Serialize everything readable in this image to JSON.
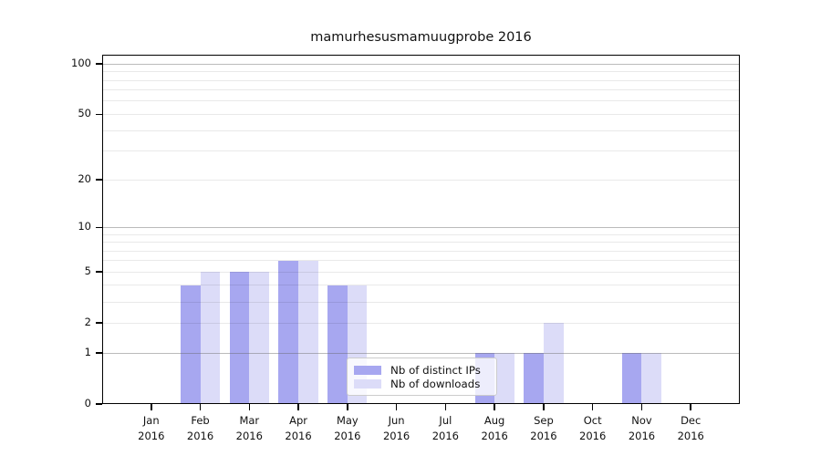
{
  "title": "mamurhesusmamuugprobe 2016",
  "chart_data": {
    "type": "bar",
    "title": "mamurhesusmamuugprobe 2016",
    "categories": [
      "Jan 2016",
      "Feb 2016",
      "Mar 2016",
      "Apr 2016",
      "May 2016",
      "Jun 2016",
      "Jul 2016",
      "Aug 2016",
      "Sep 2016",
      "Oct 2016",
      "Nov 2016",
      "Dec 2016"
    ],
    "series": [
      {
        "name": "Nb of distinct IPs",
        "color": "#a7a7f0",
        "values": [
          0,
          4,
          5,
          6,
          4,
          0,
          0,
          1,
          1,
          0,
          1,
          0
        ]
      },
      {
        "name": "Nb of downloads",
        "color": "#dcdcf8",
        "values": [
          0,
          5,
          5,
          6,
          4,
          0,
          0,
          1,
          2,
          0,
          1,
          0
        ]
      }
    ],
    "xlabel": "",
    "ylabel": "",
    "yscale": "log10(1+v)",
    "ylim": [
      0,
      113
    ],
    "ytick_values": [
      0,
      1,
      2,
      5,
      10,
      20,
      50,
      100
    ],
    "ytick_labels": [
      "0",
      "1",
      "2",
      "5",
      "10",
      "20",
      "50",
      "100"
    ],
    "major_grid_values": [
      1,
      10,
      100
    ],
    "minor_grid_values": [
      2,
      3,
      4,
      5,
      6,
      7,
      8,
      9,
      20,
      30,
      40,
      50,
      60,
      70,
      80,
      90
    ],
    "grid": "horizontal gridlines drawn over bars",
    "legend_position": "inside plot, lower middle",
    "background_color": "#ffffff",
    "axis_color": "#000000"
  },
  "legend": {
    "entries": [
      {
        "label": "Nb of distinct IPs",
        "swatch": "dark-purple-swatch"
      },
      {
        "label": "Nb of downloads",
        "swatch": "light-purple-swatch"
      }
    ]
  }
}
